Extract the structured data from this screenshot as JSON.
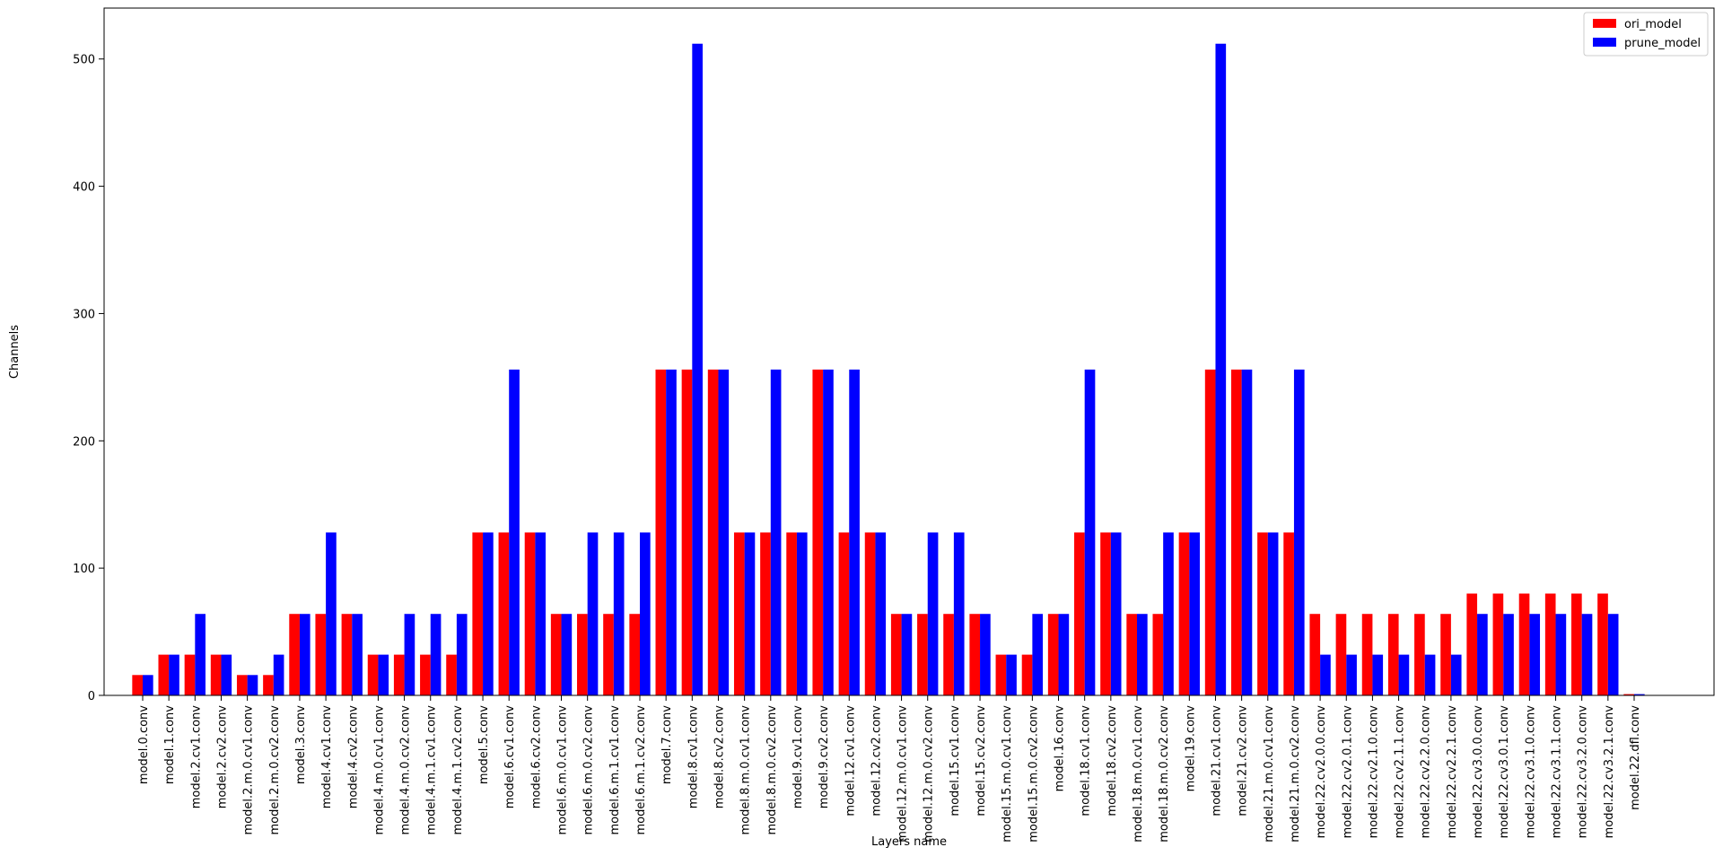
{
  "chart_data": {
    "type": "bar",
    "title": "",
    "xlabel": "Layers name",
    "ylabel": "Channels",
    "ylim": [
      0,
      540
    ],
    "yticks": [
      0,
      100,
      200,
      300,
      400,
      500
    ],
    "legend_position": "top-right",
    "grid": false,
    "categories": [
      "model.0.conv",
      "model.1.conv",
      "model.2.cv1.conv",
      "model.2.cv2.conv",
      "model.2.m.0.cv1.conv",
      "model.2.m.0.cv2.conv",
      "model.3.conv",
      "model.4.cv1.conv",
      "model.4.cv2.conv",
      "model.4.m.0.cv1.conv",
      "model.4.m.0.cv2.conv",
      "model.4.m.1.cv1.conv",
      "model.4.m.1.cv2.conv",
      "model.5.conv",
      "model.6.cv1.conv",
      "model.6.cv2.conv",
      "model.6.m.0.cv1.conv",
      "model.6.m.0.cv2.conv",
      "model.6.m.1.cv1.conv",
      "model.6.m.1.cv2.conv",
      "model.7.conv",
      "model.8.cv1.conv",
      "model.8.cv2.conv",
      "model.8.m.0.cv1.conv",
      "model.8.m.0.cv2.conv",
      "model.9.cv1.conv",
      "model.9.cv2.conv",
      "model.12.cv1.conv",
      "model.12.cv2.conv",
      "model.12.m.0.cv1.conv",
      "model.12.m.0.cv2.conv",
      "model.15.cv1.conv",
      "model.15.cv2.conv",
      "model.15.m.0.cv1.conv",
      "model.15.m.0.cv2.conv",
      "model.16.conv",
      "model.18.cv1.conv",
      "model.18.cv2.conv",
      "model.18.m.0.cv1.conv",
      "model.18.m.0.cv2.conv",
      "model.19.conv",
      "model.21.cv1.conv",
      "model.21.cv2.conv",
      "model.21.m.0.cv1.conv",
      "model.21.m.0.cv2.conv",
      "model.22.cv2.0.0.conv",
      "model.22.cv2.0.1.conv",
      "model.22.cv2.1.0.conv",
      "model.22.cv2.1.1.conv",
      "model.22.cv2.2.0.conv",
      "model.22.cv2.2.1.conv",
      "model.22.cv3.0.0.conv",
      "model.22.cv3.0.1.conv",
      "model.22.cv3.1.0.conv",
      "model.22.cv3.1.1.conv",
      "model.22.cv3.2.0.conv",
      "model.22.cv3.2.1.conv",
      "model.22.dfl.conv"
    ],
    "series": [
      {
        "name": "ori_model",
        "color": "#ff0000",
        "values": [
          16,
          32,
          32,
          32,
          16,
          16,
          64,
          64,
          64,
          32,
          32,
          32,
          32,
          128,
          128,
          128,
          64,
          64,
          64,
          64,
          256,
          256,
          256,
          128,
          128,
          128,
          256,
          128,
          128,
          64,
          64,
          64,
          64,
          32,
          32,
          64,
          128,
          128,
          64,
          64,
          128,
          256,
          256,
          128,
          128,
          64,
          64,
          64,
          64,
          64,
          64,
          80,
          80,
          80,
          80,
          80,
          80,
          1
        ]
      },
      {
        "name": "prune_model",
        "color": "#0000ff",
        "values": [
          16,
          32,
          64,
          32,
          16,
          32,
          64,
          128,
          64,
          32,
          64,
          64,
          64,
          128,
          256,
          128,
          64,
          128,
          128,
          128,
          256,
          512,
          256,
          128,
          256,
          128,
          256,
          256,
          128,
          64,
          128,
          128,
          64,
          32,
          64,
          64,
          256,
          128,
          64,
          128,
          128,
          512,
          256,
          128,
          256,
          32,
          32,
          32,
          32,
          32,
          32,
          64,
          64,
          64,
          64,
          64,
          64,
          1
        ]
      }
    ]
  }
}
